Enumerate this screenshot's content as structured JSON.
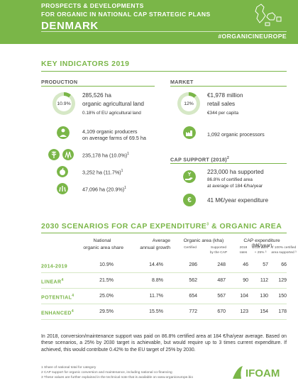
{
  "header": {
    "line1": "PROSPECTS & DEVELOPMENTS",
    "line2": "FOR ORGANIC IN NATIONAL CAP STRATEGIC PLANS",
    "country": "DENMARK",
    "hashtag": "#ORGANICINEUROPE"
  },
  "key_indicators": {
    "title": "KEY INDICATORS 2019",
    "production": {
      "title": "PRODUCTION",
      "donut_pct": "10.9%",
      "donut_value": 0.109,
      "area": "285,526 ha",
      "area_label": "organic agricultural land",
      "eu_share": "0.18% of EU agricultural land",
      "producers_line1": "4,109 organic producers",
      "producers_line2": "on average farms of 69.5 ha",
      "crop1": "235,178 ha (10.0%)",
      "crop1_sup": "1",
      "crop2": "3,252 ha (11.7%)",
      "crop2_sup": "1",
      "crop3": "47,096 ha (20.9%)",
      "crop3_sup": "1"
    },
    "market": {
      "title": "MARKET",
      "donut_pct": "12%",
      "donut_value": 0.12,
      "sales": "€1,978 million",
      "sales_label": "retail sales",
      "per_capita": "€344 per capita",
      "processors": "1,092 organic processors"
    },
    "cap_support": {
      "title": "CAP SUPPORT (2018)",
      "title_sup": "2",
      "supported": "223,000 ha supported",
      "certified": "86.8% of certified area",
      "average": "at average of 184 €/ha/year",
      "expenditure": "41 M€/year expenditure",
      "euro_symbol": "€"
    }
  },
  "scenarios": {
    "title_a": "2030 SCENARIOS FOR CAP EXPENDITURE",
    "title_sup": "3",
    "title_b": " & ORGANIC AREA",
    "col_share_1": "National",
    "col_share_2": "organic area share",
    "col_growth_1": "Average",
    "col_growth_2": "annual growth",
    "col_area": "Organic area (kha)",
    "col_area_sub1": "Certified",
    "col_area_sub2_1": "Supported",
    "col_area_sub2_2": "by the CAP",
    "col_exp": "CAP expenditure (M€/year)",
    "col_exp_sub1_1": "2018",
    "col_exp_sub1_2": "rates",
    "col_exp_sub2_1": "2018 rates",
    "col_exp_sub2_2": "+ 25% ³",
    "col_exp_sub3_1": "If 100% certified",
    "col_exp_sub3_2": "area supported ³",
    "rows": [
      {
        "label": "2014-2019",
        "sup": "",
        "share": "10.9%",
        "growth": "14.4%",
        "certified": "286",
        "supported": "248",
        "r2018": "46",
        "r25": "57",
        "r100": "66"
      },
      {
        "label": "LINEAR",
        "sup": "4",
        "share": "21.5%",
        "growth": "8.8%",
        "certified": "562",
        "supported": "487",
        "r2018": "90",
        "r25": "112",
        "r100": "129"
      },
      {
        "label": "POTENTIAL",
        "sup": "4",
        "share": "25.0%",
        "growth": "11.7%",
        "certified": "654",
        "supported": "567",
        "r2018": "104",
        "r25": "130",
        "r100": "150"
      },
      {
        "label": "ENHANCED",
        "sup": "4",
        "share": "29.5%",
        "growth": "15.5%",
        "certified": "772",
        "supported": "670",
        "r2018": "123",
        "r25": "154",
        "r100": "178"
      }
    ]
  },
  "paragraph": "In 2018, conversion/maintenance support was paid on 86.8% certified area at 184 €/ha/year average. Based on these scenarios, a 25% by 2030 target is achievable, but would require up to 3 times current expenditure. If achieved, this would contribute 0.42% to the EU target of 25% by 2030.",
  "footnotes": {
    "f1": "1 Share of national total for category",
    "f2": "2 CAP support for organic conversion and maintenance, including national co-financing",
    "f3": "3 These values are further explained in the technical note that is available on www.organiceurope.bio"
  },
  "logo": {
    "text": "IFOAM"
  },
  "colors": {
    "accent": "#7ab648",
    "light": "#d6e8c6",
    "dark_text": "#333333"
  }
}
